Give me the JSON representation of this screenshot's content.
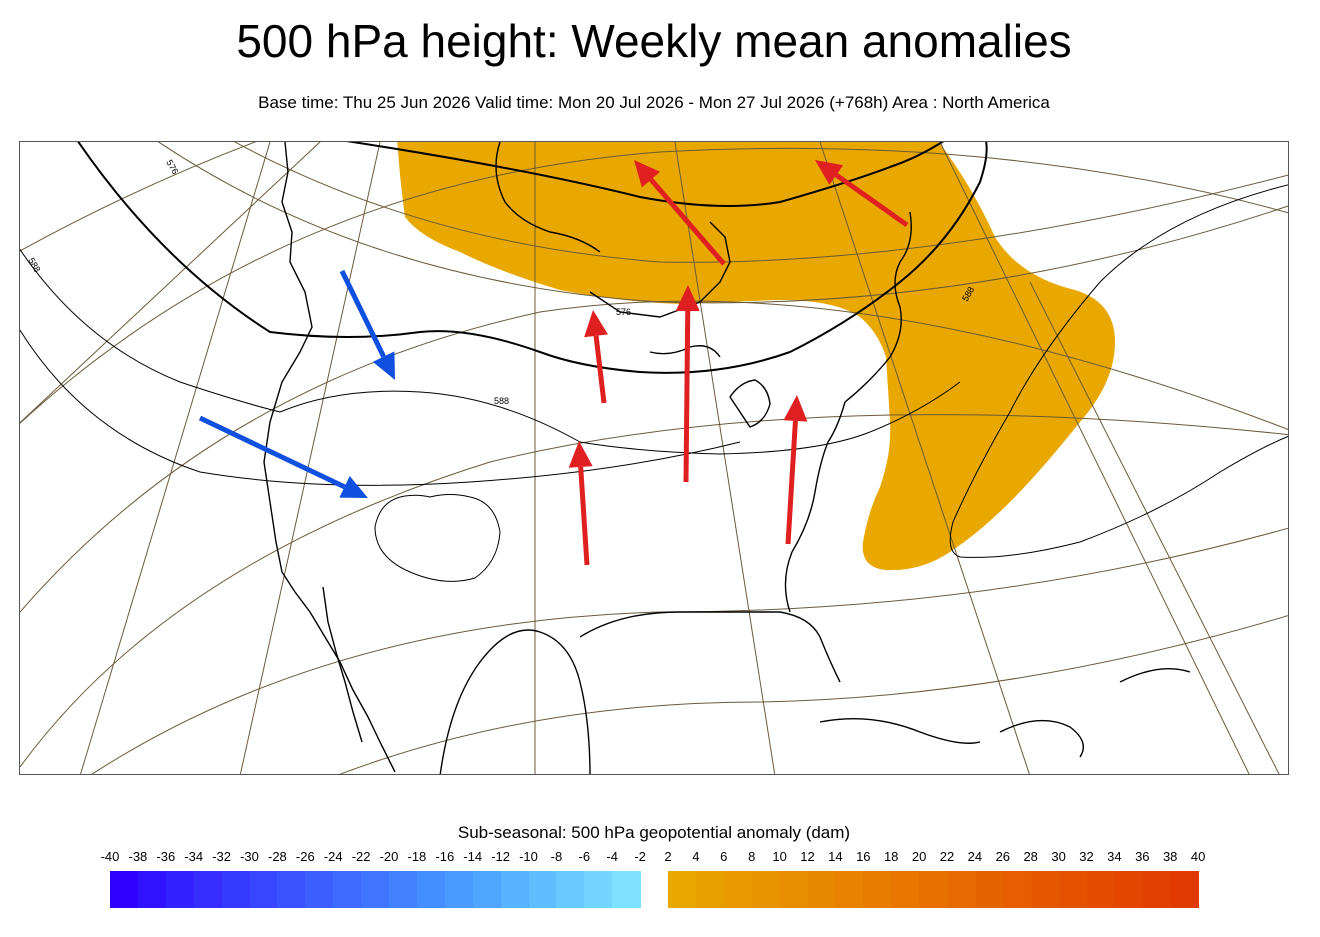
{
  "header": {
    "title": "500 hPa height: Weekly mean anomalies",
    "subtitle": "Base time: Thu 25 Jun 2026 Valid time: Mon 20 Jul 2026 - Mon 27 Jul 2026 (+768h) Area : North America"
  },
  "map": {
    "contour_labels": [
      "576",
      "588",
      "576",
      "588",
      "588"
    ],
    "positive_anomaly_color": "#e8a800",
    "warm_arrow_color": "#e02020",
    "cool_arrow_color": "#1050e0",
    "arrows": [
      {
        "kind": "cool"
      },
      {
        "kind": "cool"
      },
      {
        "kind": "warm"
      },
      {
        "kind": "warm"
      },
      {
        "kind": "warm"
      },
      {
        "kind": "warm"
      },
      {
        "kind": "warm"
      },
      {
        "kind": "warm"
      }
    ]
  },
  "legend": {
    "title": "Sub-seasonal: 500 hPa geopotential anomaly (dam)",
    "ticks": [
      "-40",
      "-38",
      "-36",
      "-34",
      "-32",
      "-30",
      "-28",
      "-26",
      "-24",
      "-22",
      "-20",
      "-18",
      "-16",
      "-14",
      "-12",
      "-10",
      "-8",
      "-6",
      "-4",
      "-2",
      "2",
      "4",
      "6",
      "8",
      "10",
      "12",
      "14",
      "16",
      "18",
      "20",
      "22",
      "24",
      "26",
      "28",
      "30",
      "32",
      "34",
      "36",
      "38",
      "40"
    ],
    "negative_colors": [
      "#2f00ff",
      "#3112ff",
      "#3321ff",
      "#352eff",
      "#363aff",
      "#3846ff",
      "#3a52ff",
      "#3c5eff",
      "#3e6aff",
      "#4076ff",
      "#4282ff",
      "#448eff",
      "#4a9aff",
      "#50a6ff",
      "#58b2ff",
      "#60beff",
      "#6acaff",
      "#74d4ff",
      "#80e0ff"
    ],
    "positive_colors": [
      "#e8a800",
      "#e8a000",
      "#e89a00",
      "#e89400",
      "#e88e00",
      "#e88800",
      "#e88200",
      "#e87c00",
      "#e87600",
      "#e87000",
      "#e66a00",
      "#e66400",
      "#e65e00",
      "#e65800",
      "#e45200",
      "#e44c00",
      "#e44600",
      "#e24000",
      "#e03a00"
    ]
  }
}
